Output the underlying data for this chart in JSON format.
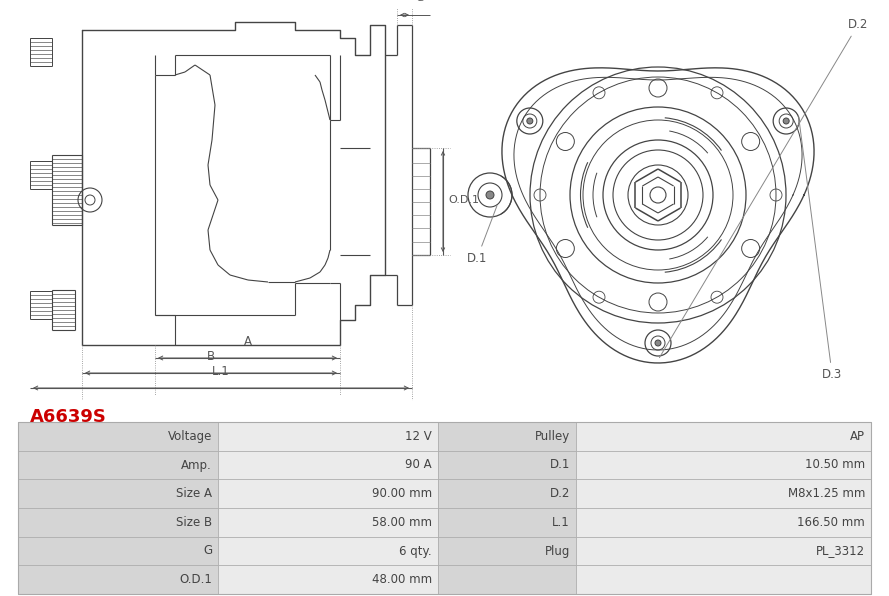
{
  "title": "A6639S",
  "title_color": "#cc0000",
  "bg_color": "#ffffff",
  "table_data": [
    [
      "Voltage",
      "12 V",
      "Pulley",
      "AP"
    ],
    [
      "Amp.",
      "90 A",
      "D.1",
      "10.50 mm"
    ],
    [
      "Size A",
      "90.00 mm",
      "D.2",
      "M8x1.25 mm"
    ],
    [
      "Size B",
      "58.00 mm",
      "L.1",
      "166.50 mm"
    ],
    [
      "G",
      "6 qty.",
      "Plug",
      "PL_3312"
    ],
    [
      "O.D.1",
      "48.00 mm",
      "",
      ""
    ]
  ],
  "line_color": "#444444",
  "dim_color": "#555555",
  "table_label_bg": "#d5d5d5",
  "table_value_bg": "#ebebeb",
  "table_border": "#aaaaaa"
}
